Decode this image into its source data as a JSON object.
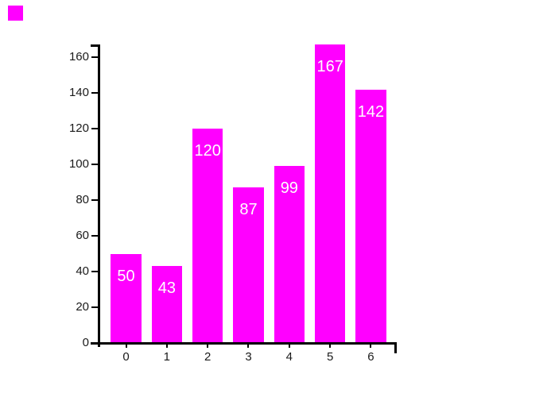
{
  "window": {
    "background": "#ffffff"
  },
  "corner_swatch": {
    "color": "#ff00ff"
  },
  "chart_data": {
    "type": "bar",
    "title": "",
    "xlabel": "",
    "ylabel": "",
    "categories": [
      "0",
      "1",
      "2",
      "3",
      "4",
      "5",
      "6"
    ],
    "values": [
      50,
      43,
      120,
      87,
      99,
      167,
      142
    ],
    "bar_labels": [
      "50",
      "43",
      "120",
      "87",
      "99",
      "167",
      "142"
    ],
    "y_ticks": [
      0,
      20,
      40,
      60,
      80,
      100,
      120,
      140,
      160
    ],
    "ylim": [
      0,
      167
    ],
    "grid": "off",
    "legend": "none",
    "bar_color": "#ff00ff",
    "bar_label_color": "#ffffff",
    "axis_color": "#000000",
    "tick_label_color": "#1a1a1a"
  }
}
